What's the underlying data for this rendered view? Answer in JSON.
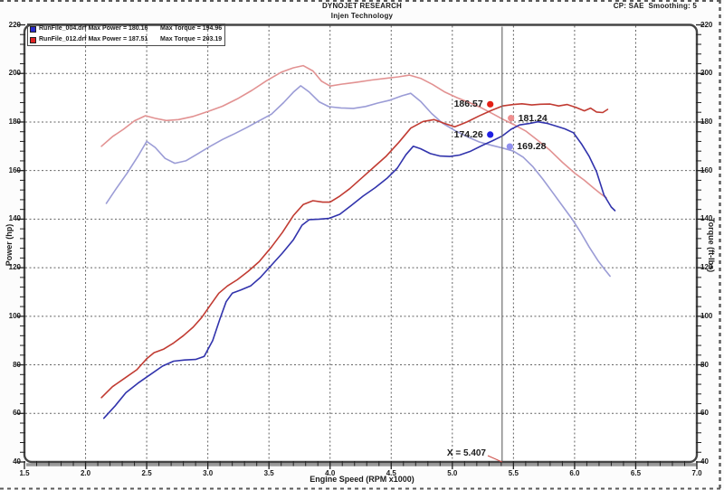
{
  "header": {
    "title": "DYNOJET RESEARCH",
    "subtitle": "Injen Technology",
    "settings": "CP: SAE  Smoothing: 5"
  },
  "legend": {
    "entries": [
      {
        "file": "RunFile_004.drf Max Power = 180.16",
        "torque": "Max Torque = 194.96",
        "swatch": "#2a2ccc"
      },
      {
        "file": "RunFile_012.drf Max Power = 187.51",
        "torque": "Max Torque = 203.19",
        "swatch": "#e02222"
      }
    ]
  },
  "axes": {
    "left_title": "Power (hp)",
    "right_title": "Torque (ft-lbs)",
    "bottom_title": "Engine Speed (RPM x1000)"
  },
  "cursor": {
    "label": "X = 5.407",
    "x": 5.407
  },
  "readouts": [
    {
      "label": "186.57",
      "marker": [
        5.31,
        187.3
      ],
      "color": "#e31f15",
      "side": "left"
    },
    {
      "label": "181.24",
      "marker": [
        5.48,
        181.6
      ],
      "color": "#ee8f8f",
      "side": "right"
    },
    {
      "label": "174.26",
      "marker": [
        5.31,
        174.8
      ],
      "color": "#1f1fe3",
      "side": "left"
    },
    {
      "label": "169.28",
      "marker": [
        5.47,
        169.9
      ],
      "color": "#9090ee",
      "side": "right"
    }
  ],
  "chart_data": {
    "type": "line",
    "title": "DYNOJET RESEARCH",
    "subtitle": "Injen Technology",
    "xlabel": "Engine Speed (RPM x1000)",
    "ylabel_left": "Power (hp)",
    "ylabel_right": "Torque (ft-lbs)",
    "xlim": [
      1.5,
      7.0
    ],
    "ylim": [
      40,
      220
    ],
    "xticks": [
      1.5,
      2.0,
      2.5,
      3.0,
      3.5,
      4.0,
      4.5,
      5.0,
      5.5,
      6.0,
      6.5,
      7.0
    ],
    "yticks": [
      40,
      60,
      80,
      100,
      120,
      140,
      160,
      180,
      200,
      220
    ],
    "x_minor_step": 0.1,
    "y_minor_step": 4,
    "grid": "dashed-major",
    "legend_position": "top-left",
    "cursor_x": 5.407,
    "grid_color": "#4a4a4a",
    "series": [
      {
        "name": "RunFile_012.drf Torque",
        "unit": "ft-lbs",
        "max": 203.19,
        "color": "#e29292",
        "points": [
          [
            2.13,
            170
          ],
          [
            2.22,
            174
          ],
          [
            2.31,
            177
          ],
          [
            2.4,
            180.5
          ],
          [
            2.49,
            182.6
          ],
          [
            2.57,
            181.5
          ],
          [
            2.66,
            180.6
          ],
          [
            2.76,
            181
          ],
          [
            2.88,
            182.3
          ],
          [
            3.0,
            184.3
          ],
          [
            3.12,
            186.5
          ],
          [
            3.24,
            189.5
          ],
          [
            3.36,
            193
          ],
          [
            3.48,
            197
          ],
          [
            3.6,
            200.5
          ],
          [
            3.7,
            202.3
          ],
          [
            3.78,
            203.2
          ],
          [
            3.86,
            201
          ],
          [
            3.93,
            196.8
          ],
          [
            4.0,
            194.8
          ],
          [
            4.1,
            195.6
          ],
          [
            4.22,
            196.4
          ],
          [
            4.34,
            197.3
          ],
          [
            4.46,
            198
          ],
          [
            4.56,
            198.6
          ],
          [
            4.65,
            199.3
          ],
          [
            4.74,
            198
          ],
          [
            4.84,
            195.4
          ],
          [
            4.94,
            192.3
          ],
          [
            5.04,
            190
          ],
          [
            5.14,
            188
          ],
          [
            5.24,
            185.8
          ],
          [
            5.33,
            183.4
          ],
          [
            5.41,
            181.2
          ],
          [
            5.5,
            179
          ],
          [
            5.6,
            176.3
          ],
          [
            5.7,
            172.4
          ],
          [
            5.8,
            168.3
          ],
          [
            5.9,
            163.4
          ],
          [
            6.0,
            159
          ],
          [
            6.08,
            156
          ],
          [
            6.16,
            152.6
          ],
          [
            6.22,
            150.2
          ],
          [
            6.26,
            148.8
          ]
        ]
      },
      {
        "name": "RunFile_004.drf Torque",
        "unit": "ft-lbs",
        "max": 194.96,
        "color": "#9b9cd6",
        "points": [
          [
            2.17,
            146.5
          ],
          [
            2.25,
            152.5
          ],
          [
            2.34,
            159
          ],
          [
            2.43,
            166
          ],
          [
            2.5,
            172
          ],
          [
            2.57,
            169.5
          ],
          [
            2.65,
            165
          ],
          [
            2.73,
            163
          ],
          [
            2.82,
            164
          ],
          [
            2.92,
            167
          ],
          [
            3.02,
            170
          ],
          [
            3.12,
            172.8
          ],
          [
            3.22,
            175.2
          ],
          [
            3.32,
            177.8
          ],
          [
            3.42,
            180.5
          ],
          [
            3.52,
            183.2
          ],
          [
            3.62,
            188
          ],
          [
            3.7,
            192.3
          ],
          [
            3.76,
            194.9
          ],
          [
            3.83,
            192.3
          ],
          [
            3.91,
            188.3
          ],
          [
            3.99,
            186.3
          ],
          [
            4.09,
            185.8
          ],
          [
            4.19,
            185.6
          ],
          [
            4.29,
            186.4
          ],
          [
            4.39,
            187.8
          ],
          [
            4.49,
            189
          ],
          [
            4.59,
            190.8
          ],
          [
            4.66,
            191.8
          ],
          [
            4.74,
            188.5
          ],
          [
            4.83,
            183.5
          ],
          [
            4.92,
            179.5
          ],
          [
            5.02,
            176.5
          ],
          [
            5.12,
            174
          ],
          [
            5.22,
            171.8
          ],
          [
            5.32,
            170.4
          ],
          [
            5.41,
            169.3
          ],
          [
            5.5,
            168
          ],
          [
            5.58,
            165.5
          ],
          [
            5.66,
            161.5
          ],
          [
            5.74,
            156.5
          ],
          [
            5.82,
            151
          ],
          [
            5.9,
            145.5
          ],
          [
            5.98,
            140
          ],
          [
            6.05,
            134.5
          ],
          [
            6.12,
            128.5
          ],
          [
            6.19,
            123
          ],
          [
            6.25,
            119
          ],
          [
            6.29,
            116.5
          ]
        ]
      },
      {
        "name": "RunFile_012.drf Power",
        "unit": "hp",
        "max": 187.51,
        "color": "#c13b32",
        "points": [
          [
            2.13,
            66.5
          ],
          [
            2.22,
            71
          ],
          [
            2.32,
            74.5
          ],
          [
            2.42,
            78
          ],
          [
            2.5,
            82.5
          ],
          [
            2.56,
            85
          ],
          [
            2.64,
            86.5
          ],
          [
            2.72,
            89
          ],
          [
            2.8,
            92
          ],
          [
            2.88,
            95.5
          ],
          [
            2.95,
            99.5
          ],
          [
            3.02,
            104.5
          ],
          [
            3.09,
            109.5
          ],
          [
            3.16,
            112.5
          ],
          [
            3.24,
            115
          ],
          [
            3.33,
            118.5
          ],
          [
            3.42,
            122.5
          ],
          [
            3.52,
            128.5
          ],
          [
            3.61,
            134.5
          ],
          [
            3.7,
            141.5
          ],
          [
            3.78,
            146
          ],
          [
            3.86,
            147.6
          ],
          [
            3.94,
            147
          ],
          [
            4.0,
            147
          ],
          [
            4.08,
            149.5
          ],
          [
            4.16,
            152.5
          ],
          [
            4.26,
            157
          ],
          [
            4.36,
            161.5
          ],
          [
            4.46,
            166
          ],
          [
            4.56,
            171.5
          ],
          [
            4.66,
            177.5
          ],
          [
            4.76,
            180.2
          ],
          [
            4.85,
            181
          ],
          [
            4.93,
            179.5
          ],
          [
            5.02,
            178
          ],
          [
            5.12,
            180
          ],
          [
            5.22,
            182.5
          ],
          [
            5.32,
            184.8
          ],
          [
            5.41,
            186.6
          ],
          [
            5.5,
            187.2
          ],
          [
            5.57,
            187.5
          ],
          [
            5.65,
            187
          ],
          [
            5.72,
            187.3
          ],
          [
            5.8,
            187.4
          ],
          [
            5.87,
            186.6
          ],
          [
            5.94,
            187.2
          ],
          [
            6.01,
            186
          ],
          [
            6.08,
            184.6
          ],
          [
            6.13,
            185.7
          ],
          [
            6.18,
            184.1
          ],
          [
            6.23,
            183.9
          ],
          [
            6.27,
            185.2
          ]
        ]
      },
      {
        "name": "RunFile_004.drf Power",
        "unit": "hp",
        "max": 180.16,
        "color": "#3133ac",
        "points": [
          [
            2.15,
            58
          ],
          [
            2.24,
            63
          ],
          [
            2.33,
            68.5
          ],
          [
            2.43,
            72.5
          ],
          [
            2.53,
            76
          ],
          [
            2.63,
            79.5
          ],
          [
            2.72,
            81.5
          ],
          [
            2.81,
            82
          ],
          [
            2.9,
            82.2
          ],
          [
            2.97,
            83.5
          ],
          [
            3.04,
            90
          ],
          [
            3.1,
            99
          ],
          [
            3.15,
            106
          ],
          [
            3.2,
            109.5
          ],
          [
            3.27,
            110.8
          ],
          [
            3.35,
            112.5
          ],
          [
            3.43,
            116
          ],
          [
            3.52,
            121
          ],
          [
            3.61,
            126
          ],
          [
            3.7,
            131.5
          ],
          [
            3.77,
            137.5
          ],
          [
            3.83,
            139.8
          ],
          [
            3.91,
            140
          ],
          [
            3.99,
            140.3
          ],
          [
            4.08,
            142
          ],
          [
            4.17,
            145.5
          ],
          [
            4.27,
            149.5
          ],
          [
            4.37,
            153
          ],
          [
            4.47,
            157
          ],
          [
            4.55,
            161
          ],
          [
            4.62,
            166.5
          ],
          [
            4.68,
            170
          ],
          [
            4.74,
            169
          ],
          [
            4.82,
            167
          ],
          [
            4.9,
            166
          ],
          [
            4.98,
            165.8
          ],
          [
            5.06,
            166.4
          ],
          [
            5.15,
            168
          ],
          [
            5.25,
            170.5
          ],
          [
            5.33,
            172.3
          ],
          [
            5.41,
            174.3
          ],
          [
            5.48,
            177
          ],
          [
            5.55,
            178.8
          ],
          [
            5.63,
            179.4
          ],
          [
            5.7,
            180.1
          ],
          [
            5.78,
            179.4
          ],
          [
            5.85,
            178.3
          ],
          [
            5.92,
            177.2
          ],
          [
            5.99,
            175.6
          ],
          [
            6.06,
            170.7
          ],
          [
            6.12,
            165.8
          ],
          [
            6.18,
            159.5
          ],
          [
            6.24,
            150
          ],
          [
            6.3,
            145
          ],
          [
            6.33,
            143.5
          ]
        ]
      }
    ]
  }
}
